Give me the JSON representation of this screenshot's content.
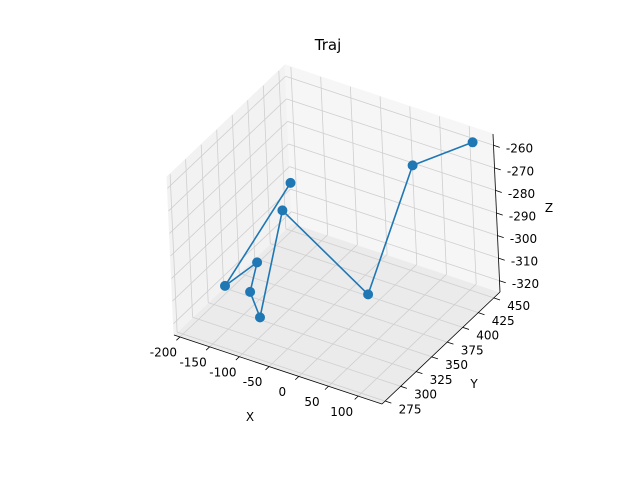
{
  "chart_data": {
    "type": "line3d",
    "title": "Traj",
    "xlabel": "X",
    "ylabel": "Y",
    "zlabel": "Z",
    "grid": true,
    "xlim": [
      -210,
      140
    ],
    "ylim": [
      270,
      460
    ],
    "zlim": [
      -325,
      -255
    ],
    "xticks": [
      -200,
      -150,
      -100,
      -50,
      0,
      50,
      100
    ],
    "yticks": [
      275,
      300,
      325,
      350,
      375,
      400,
      425,
      450
    ],
    "zticks": [
      -320,
      -310,
      -300,
      -290,
      -280,
      -270,
      -260
    ],
    "series": [
      {
        "color": "#1f77b4",
        "marker": "circle",
        "points": [
          {
            "x": 110,
            "y": 455,
            "z": -260
          },
          {
            "x": 50,
            "y": 415,
            "z": -265
          },
          {
            "x": 25,
            "y": 360,
            "z": -310
          },
          {
            "x": -115,
            "y": 360,
            "z": -285
          },
          {
            "x": -95,
            "y": 300,
            "z": -315
          },
          {
            "x": -110,
            "y": 300,
            "z": -305
          },
          {
            "x": -140,
            "y": 340,
            "z": -305
          },
          {
            "x": -180,
            "y": 325,
            "z": -315
          },
          {
            "x": -110,
            "y": 370,
            "z": -275
          }
        ]
      }
    ]
  }
}
